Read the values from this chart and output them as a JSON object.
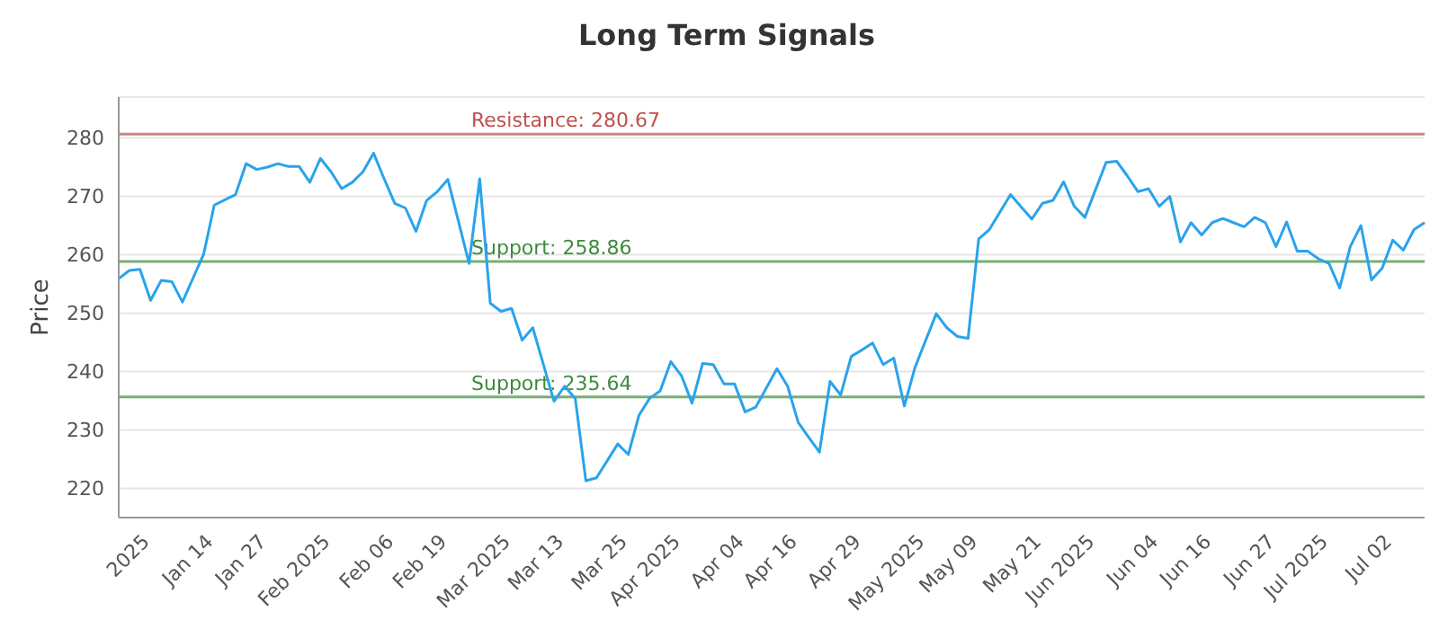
{
  "chart_data": {
    "type": "line",
    "title": "Long Term Signals",
    "ylabel": "Price",
    "categories": [
      null,
      null,
      null,
      "2025",
      null,
      null,
      null,
      null,
      null,
      "Jan 14",
      null,
      null,
      null,
      null,
      "Jan 27",
      null,
      null,
      null,
      null,
      null,
      "Feb 2025",
      null,
      null,
      null,
      null,
      null,
      "Feb 06",
      null,
      null,
      null,
      null,
      "Feb 19",
      null,
      null,
      null,
      null,
      null,
      "Mar 2025",
      null,
      null,
      null,
      null,
      "Mar 13",
      null,
      null,
      null,
      null,
      null,
      "Mar 25",
      null,
      null,
      null,
      null,
      "Apr 2025",
      null,
      null,
      null,
      null,
      null,
      "Apr 04",
      null,
      null,
      null,
      null,
      "Apr 16",
      null,
      null,
      null,
      null,
      null,
      "Apr 29",
      null,
      null,
      null,
      null,
      null,
      "May 2025",
      null,
      null,
      null,
      null,
      "May 09",
      null,
      null,
      null,
      null,
      null,
      "May 21",
      null,
      null,
      null,
      null,
      "Jun 2025",
      null,
      null,
      null,
      null,
      null,
      "Jun 04",
      null,
      null,
      null,
      null,
      "Jun 16",
      null,
      null,
      null,
      null,
      null,
      "Jun 27",
      null,
      null,
      null,
      null,
      "Jul 2025",
      null,
      null,
      null,
      null,
      null,
      "Jul 02",
      null,
      null,
      null
    ],
    "series": [
      {
        "color": "#29a3ec",
        "values": [
          255.9,
          257.3,
          257.5,
          252.2,
          255.6,
          255.4,
          251.9,
          256,
          260.1,
          268.5,
          269.4,
          270.3,
          275.6,
          274.6,
          275,
          275.6,
          275.1,
          275.1,
          272.4,
          276.5,
          274.2,
          271.3,
          272.4,
          274.2,
          277.4,
          273,
          268.8,
          268,
          264,
          269.3,
          270.8,
          272.9,
          265.7,
          258.5,
          273,
          251.7,
          250.3,
          250.8,
          245.4,
          247.5,
          241.2,
          234.9,
          237.5,
          235.4,
          221.3,
          221.8,
          224.7,
          227.6,
          225.8,
          232.5,
          235.4,
          236.7,
          241.7,
          239.3,
          234.6,
          241.4,
          241.2,
          237.9,
          237.9,
          233.1,
          233.9,
          237.2,
          240.5,
          237.5,
          231.3,
          228.7,
          226.2,
          238.3,
          236,
          242.6,
          243.7,
          244.9,
          241.2,
          242.3,
          234.1,
          240.7,
          245.3,
          249.9,
          247.5,
          246,
          245.7,
          262.7,
          264.3,
          267.3,
          270.3,
          268.2,
          266.1,
          268.8,
          269.3,
          272.5,
          268.3,
          266.4,
          271.1,
          275.8,
          276,
          273.5,
          270.8,
          271.3,
          268.3,
          270,
          262.2,
          265.5,
          263.4,
          265.5,
          266.2,
          265.5,
          264.8,
          266.4,
          265.5,
          261.4,
          265.6,
          260.6,
          260.6,
          259.3,
          258.5,
          254.3,
          261.4,
          265,
          255.7,
          257.7,
          262.5,
          260.8,
          264.3,
          265.5
        ]
      }
    ],
    "ylim": [
      215,
      287
    ],
    "yticks": [
      220,
      230,
      240,
      250,
      260,
      270,
      280
    ],
    "grid": "y",
    "marker": "none",
    "line_style": "solid",
    "ref_lines": [
      {
        "axis": "y",
        "value": 280.67,
        "label": "Resistance: 280.67",
        "color": "#c0504d"
      },
      {
        "axis": "y",
        "value": 258.86,
        "label": "Support: 258.86",
        "color": "#3c8c3c"
      },
      {
        "axis": "y",
        "value": 235.64,
        "label": "Support: 235.64",
        "color": "#3c8c3c"
      }
    ]
  }
}
